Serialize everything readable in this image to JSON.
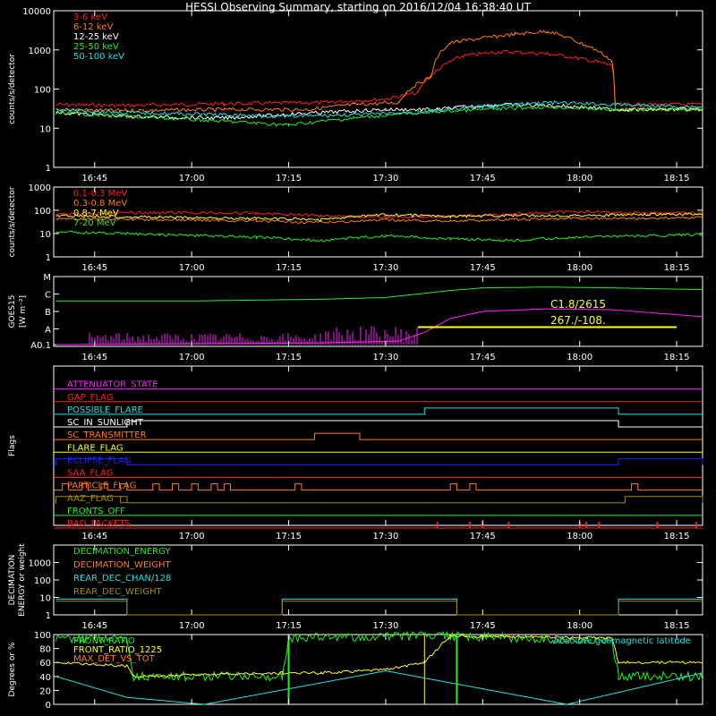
{
  "title": "HESSI Observing Summary, starting on 2016/12/04 16:38:40 UT",
  "colors": {
    "red": "#ff2020",
    "orange": "#ff7a1a",
    "white": "#ffffff",
    "green": "#20f020",
    "yellow": "#ffff20",
    "cyan": "#20e0e0",
    "magenta": "#ff20ff",
    "blue": "#2020ff",
    "olive": "#a08c00",
    "axis": "#ffffff",
    "background": "#000000"
  },
  "chart_data": [
    {
      "id": "lightcurves-low",
      "type": "line",
      "ylabel": "counts/s/detector",
      "yscale": "log",
      "ylim": [
        1,
        10000
      ],
      "y_ticks": [
        "1",
        "10",
        "100",
        "1000",
        "10000"
      ],
      "x_ticks": [
        "16:45",
        "17:00",
        "17:15",
        "17:30",
        "17:45",
        "18:00",
        "18:15"
      ],
      "x_range_minutes": [
        "16:38:40",
        "18:19:00"
      ],
      "series": [
        {
          "name": "3-6 keV",
          "color": "#ff2020",
          "x": [
            "16:39",
            "16:50",
            "17:05",
            "17:20",
            "17:30",
            "17:35",
            "17:38",
            "17:42",
            "17:48",
            "17:55",
            "18:00",
            "18:05",
            "18:05:30",
            "18:10",
            "18:19"
          ],
          "y": [
            40,
            38,
            42,
            45,
            55,
            80,
            300,
            700,
            900,
            800,
            600,
            400,
            40,
            40,
            40
          ]
        },
        {
          "name": "6-12 keV",
          "color": "#ff7a1a",
          "x": [
            "16:39",
            "16:50",
            "17:05",
            "17:18",
            "17:25",
            "17:32",
            "17:37",
            "17:40",
            "17:45",
            "17:50",
            "17:55",
            "18:00",
            "18:05",
            "18:05:30",
            "18:19"
          ],
          "y": [
            30,
            28,
            30,
            30,
            40,
            45,
            200,
            1500,
            2000,
            2500,
            3000,
            1500,
            500,
            30,
            30
          ]
        },
        {
          "name": "12-25 keV",
          "color": "#ffffff",
          "x": [
            "16:39",
            "16:50",
            "17:05",
            "17:20",
            "17:30",
            "17:38",
            "17:42",
            "17:48",
            "17:55",
            "18:00",
            "18:05",
            "18:19"
          ],
          "y": [
            25,
            20,
            18,
            25,
            30,
            30,
            35,
            40,
            38,
            35,
            30,
            30
          ]
        },
        {
          "name": "25-50 keV",
          "color": "#20f020",
          "x": [
            "16:39",
            "16:50",
            "17:05",
            "17:15",
            "17:25",
            "17:35",
            "17:45",
            "17:55",
            "18:05",
            "18:19"
          ],
          "y": [
            25,
            20,
            15,
            12,
            18,
            25,
            30,
            35,
            30,
            30
          ]
        },
        {
          "name": "50-100 keV",
          "color": "#20e0e0",
          "x": [
            "16:39",
            "16:50",
            "17:05",
            "17:15",
            "17:25",
            "17:35",
            "17:45",
            "17:55",
            "18:05",
            "18:19"
          ],
          "y": [
            30,
            25,
            22,
            20,
            22,
            25,
            35,
            45,
            40,
            35
          ]
        }
      ]
    },
    {
      "id": "lightcurves-high",
      "type": "line",
      "ylabel": "counts/s/detector",
      "yscale": "log",
      "ylim": [
        1,
        1000
      ],
      "y_ticks": [
        "1",
        "10",
        "100",
        "1000"
      ],
      "x_ticks": [
        "16:45",
        "17:00",
        "17:15",
        "17:30",
        "17:45",
        "18:00",
        "18:15"
      ],
      "series": [
        {
          "name": "0.1-0.3 MeV",
          "color": "#ff2020",
          "x": [
            "16:39",
            "16:55",
            "17:10",
            "17:20",
            "17:30",
            "17:40",
            "17:50",
            "18:00",
            "18:05",
            "18:19"
          ],
          "y": [
            70,
            80,
            75,
            60,
            50,
            55,
            70,
            90,
            80,
            75
          ]
        },
        {
          "name": "0.3-0.8 MeV",
          "color": "#ff7a1a",
          "x": [
            "16:39",
            "16:55",
            "17:10",
            "17:20",
            "17:30",
            "17:40",
            "17:50",
            "18:00",
            "18:10",
            "18:19"
          ],
          "y": [
            45,
            40,
            35,
            30,
            38,
            35,
            40,
            45,
            45,
            50
          ]
        },
        {
          "name": "0.8-7 MeV",
          "color": "#ffff20",
          "x": [
            "16:39",
            "16:55",
            "17:10",
            "17:20",
            "17:30",
            "17:40",
            "17:50",
            "18:00",
            "18:10",
            "18:19"
          ],
          "y": [
            60,
            50,
            45,
            40,
            65,
            55,
            60,
            60,
            65,
            70
          ]
        },
        {
          "name": "7-20 MeV",
          "color": "#20f020",
          "x": [
            "16:39",
            "16:55",
            "17:10",
            "17:20",
            "17:30",
            "17:40",
            "17:50",
            "18:00",
            "18:10",
            "18:19"
          ],
          "y": [
            12,
            9,
            7,
            5,
            8,
            6,
            5,
            7,
            8,
            9
          ]
        }
      ]
    },
    {
      "id": "goes",
      "type": "line",
      "ylabel": "GOES15",
      "ylabel_unit": "[W m⁻²]",
      "yscale": "log",
      "y_ticks": [
        "A0.1",
        "A",
        "B",
        "C",
        "M"
      ],
      "x_ticks": [
        "16:45",
        "17:00",
        "17:15",
        "17:30",
        "17:45",
        "18:00",
        "18:15"
      ],
      "annotations": [
        "C1.8/2615",
        "267./-108."
      ],
      "series": [
        {
          "color": "#20f020",
          "x": [
            "16:39",
            "17:00",
            "17:20",
            "17:30",
            "17:40",
            "17:45",
            "17:55",
            "18:05",
            "18:19"
          ],
          "level": [
            2.6,
            2.6,
            2.7,
            2.8,
            3.2,
            3.35,
            3.4,
            3.35,
            3.25
          ]
        },
        {
          "color": "#ff20ff",
          "x": [
            "16:39",
            "17:00",
            "17:20",
            "17:32",
            "17:36",
            "17:40",
            "17:45",
            "17:55",
            "18:05",
            "18:19"
          ],
          "level": [
            0.1,
            0.15,
            0.2,
            0.3,
            0.8,
            1.6,
            2.0,
            2.15,
            2.1,
            1.7
          ]
        }
      ],
      "bar": {
        "color": "#ffff20",
        "x": [
          "17:35",
          "18:15"
        ],
        "level": 1.1
      }
    },
    {
      "id": "flags",
      "type": "table",
      "ylabel": "Flags",
      "x_ticks": [
        "16:45",
        "17:00",
        "17:15",
        "17:30",
        "17:45",
        "18:00",
        "18:15"
      ],
      "rows": [
        {
          "label": "ATTENUATOR_STATE",
          "color": "#ff20ff",
          "on": []
        },
        {
          "label": "GAP_FLAG",
          "color": "#ff2020",
          "on": []
        },
        {
          "label": "POSSIBLE_FLARE",
          "color": "#20e0e0",
          "on": [
            [
              "17:36",
              "18:06"
            ]
          ]
        },
        {
          "label": "SC_IN_SUNLIGHT",
          "color": "#ffffff",
          "on": [
            [
              "16:50",
              "18:06"
            ]
          ]
        },
        {
          "label": "SC_TRANSMITTER",
          "color": "#ff7a1a",
          "on": [
            [
              "17:19",
              "17:26"
            ]
          ]
        },
        {
          "label": "FLARE_FLAG",
          "color": "#ffff20",
          "on": []
        },
        {
          "label": "ECLIPSE_FLAG",
          "color": "#2020ff",
          "on": [
            [
              "16:39",
              "16:50"
            ],
            [
              "18:06",
              "18:19"
            ]
          ]
        },
        {
          "label": "SAA_FLAG",
          "color": "#ff2020",
          "on": []
        },
        {
          "label": "PARTICLE_FLAG",
          "color": "#ff7a1a",
          "on": [
            [
              "16:40",
              "16:41"
            ],
            [
              "16:43",
              "16:44"
            ],
            [
              "16:46",
              "16:47"
            ],
            [
              "16:49",
              "16:50"
            ],
            [
              "16:54",
              "16:55"
            ],
            [
              "16:57",
              "16:58"
            ],
            [
              "17:00",
              "17:01"
            ],
            [
              "17:03",
              "17:04"
            ],
            [
              "17:05",
              "17:06"
            ],
            [
              "17:16",
              "17:17"
            ],
            [
              "17:40",
              "17:41"
            ],
            [
              "17:43",
              "17:44"
            ],
            [
              "18:08",
              "18:09"
            ]
          ]
        },
        {
          "label": "AAZ_FLAG",
          "color": "#a08c00",
          "on": [
            [
              "16:39",
              "16:50"
            ],
            [
              "16:49",
              "16:50"
            ],
            [
              "18:07",
              "18:19"
            ]
          ]
        },
        {
          "label": "FRONTS_OFF",
          "color": "#20f020",
          "on": []
        },
        {
          "label": "BAD_PACKETS",
          "color": "#ff2020",
          "on": [
            [
              "17:38",
              "17:38"
            ],
            [
              "17:43",
              "17:43"
            ],
            [
              "17:45",
              "17:45"
            ],
            [
              "17:49",
              "17:49"
            ],
            [
              "18:00",
              "18:00"
            ],
            [
              "18:01",
              "18:01"
            ],
            [
              "18:03",
              "18:03"
            ],
            [
              "18:12",
              "18:12"
            ],
            [
              "18:18",
              "18:18"
            ]
          ]
        }
      ]
    },
    {
      "id": "decimation",
      "type": "line",
      "ylabel": "DECIMATION\nENERGY or weight",
      "yscale": "log",
      "ylim": [
        1,
        10000
      ],
      "y_ticks": [
        "1",
        "10",
        "100",
        "1000"
      ],
      "x_ticks": [
        "16:45",
        "17:00",
        "17:15",
        "17:30",
        "17:45",
        "18:00",
        "18:15"
      ],
      "series": [
        {
          "name": "DECIMATION_ENERGY",
          "color": "#20f020",
          "x": [],
          "y": []
        },
        {
          "name": "DECIMATION_WEIGHT",
          "color": "#ff7a1a",
          "x": [],
          "y": []
        },
        {
          "name": "REAR_DEC_CHAN/128",
          "color": "#20e0e0",
          "x": [
            "16:39",
            "16:50",
            "16:50",
            "17:14",
            "17:14",
            "17:41",
            "17:41",
            "18:06",
            "18:06",
            "18:19"
          ],
          "y": [
            8,
            8,
            1,
            1,
            8,
            8,
            1,
            1,
            8,
            8
          ]
        },
        {
          "name": "REAR_DEC_WEIGHT",
          "color": "#a08c00",
          "x": [
            "16:39",
            "16:50",
            "16:50",
            "17:14",
            "17:14",
            "17:41",
            "17:41",
            "18:06",
            "18:06",
            "18:19"
          ],
          "y": [
            6,
            6,
            1,
            1,
            6,
            6,
            1,
            1,
            6,
            6
          ]
        }
      ]
    },
    {
      "id": "ratios",
      "type": "line",
      "ylabel": "Degrees or %",
      "ylim": [
        0,
        100
      ],
      "y_ticks": [
        "0",
        "20",
        "40",
        "60",
        "80",
        "100"
      ],
      "x_ticks": [
        "16:45",
        "17:00",
        "17:15",
        "17:30",
        "17:45",
        "18:00",
        "18:15"
      ],
      "annotation": "Absolute geomagnetic latitude",
      "series": [
        {
          "name": "FRONT_RATIO",
          "color": "#20f020",
          "x": [
            "16:39",
            "16:50",
            "16:51",
            "17:14",
            "17:15",
            "17:40",
            "18:05",
            "18:06",
            "18:19"
          ],
          "y": [
            95,
            95,
            40,
            40,
            95,
            98,
            90,
            40,
            40
          ]
        },
        {
          "name": "FRONT_RATIO_1225",
          "color": "#ffff20",
          "x": [
            "16:39",
            "16:50",
            "16:51",
            "17:14",
            "17:20",
            "17:30",
            "17:36",
            "17:40",
            "18:05",
            "18:06",
            "18:19"
          ],
          "y": [
            60,
            55,
            40,
            45,
            45,
            50,
            60,
            98,
            95,
            60,
            60
          ]
        },
        {
          "name": "MAX_DET_VS_TOT",
          "color": "#ff7a1a",
          "x": [],
          "y": []
        },
        {
          "name": "Absolute geomagnetic latitude",
          "color": "#20e0e0",
          "x": [
            "16:39",
            "16:50",
            "17:02",
            "17:30",
            "17:58",
            "18:19"
          ],
          "y": [
            40,
            10,
            0,
            48,
            0,
            45
          ]
        }
      ]
    }
  ]
}
